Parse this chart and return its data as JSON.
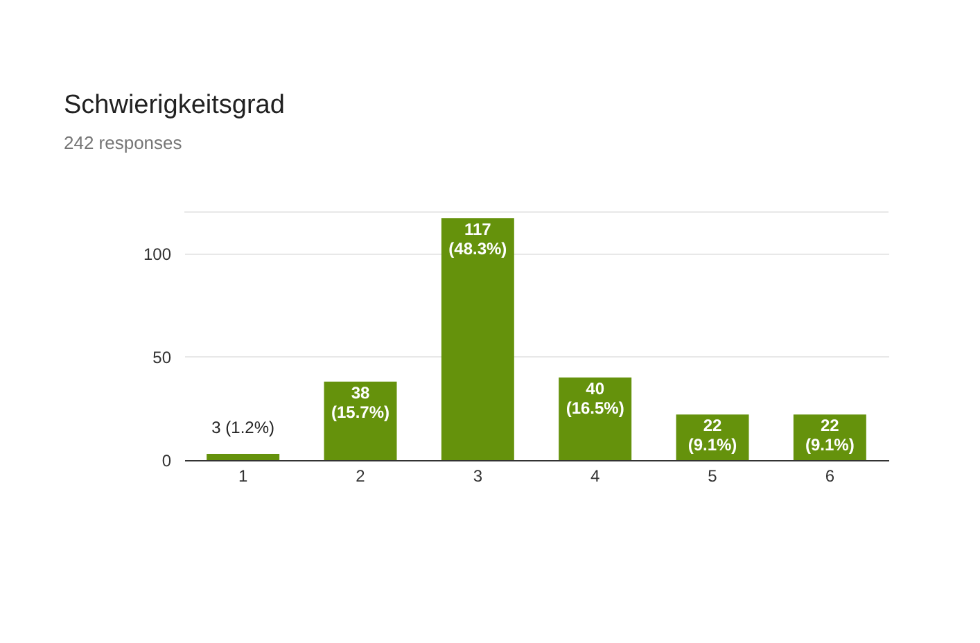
{
  "chart_data": {
    "type": "bar",
    "title": "Schwierigkeitsgrad",
    "subtitle": "242 responses",
    "categories": [
      "1",
      "2",
      "3",
      "4",
      "5",
      "6"
    ],
    "values": [
      3,
      38,
      117,
      40,
      22,
      22
    ],
    "value_labels": [
      "3 (1.2%)",
      "38 (15.7%)",
      "117 (48.3%)",
      "40 (16.5%)",
      "22 (9.1%)",
      "22 (9.1%)"
    ],
    "color": "#65920c",
    "ylim": [
      0,
      120
    ],
    "yticks": [
      0,
      50,
      100
    ],
    "grid": "y"
  }
}
